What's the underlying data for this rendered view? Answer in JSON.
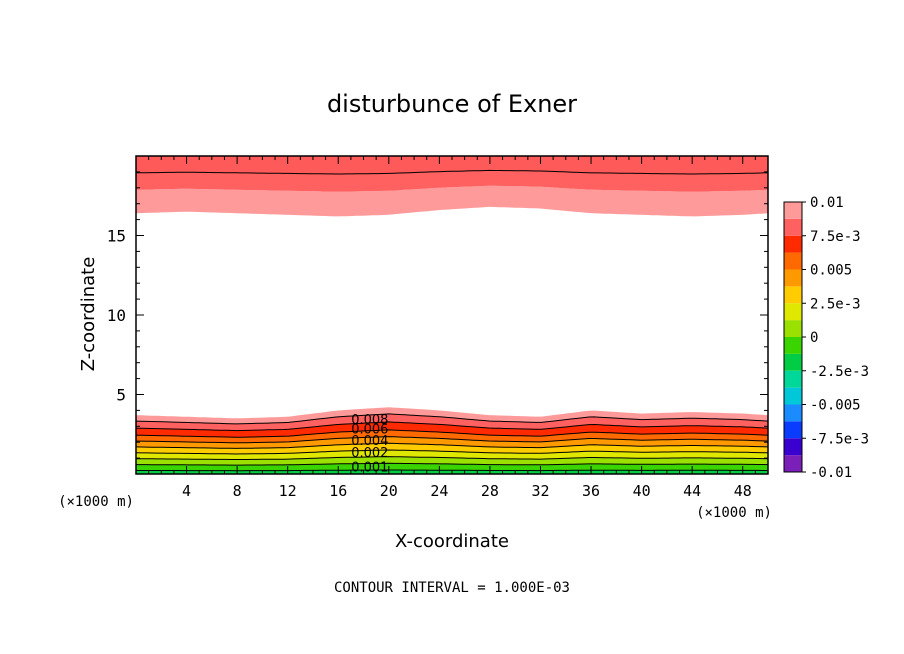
{
  "chart_data": {
    "type": "heatmap",
    "title": "disturbunce of Exner",
    "xlabel": "X-coordinate",
    "ylabel": "Z-coordinate",
    "x_unit": "(×1000 m)",
    "y_unit": "(×1000 m)",
    "xlim": [
      0,
      50
    ],
    "ylim": [
      0,
      20
    ],
    "x_ticks": [
      4,
      8,
      12,
      16,
      20,
      24,
      28,
      32,
      36,
      40,
      44,
      48
    ],
    "y_ticks": [
      5,
      10,
      15
    ],
    "contour_interval_label": "CONTOUR INTERVAL = 1.000E-03",
    "colorbar": {
      "range": [
        -0.01,
        0.01
      ],
      "tick_labels": [
        "0.01",
        "7.5e-3",
        "0.005",
        "2.5e-3",
        "0",
        "-2.5e-3",
        "-0.005",
        "-7.5e-3",
        "-0.01"
      ],
      "colors": [
        "#7a1fb8",
        "#3a00d0",
        "#0a3cff",
        "#1a8cff",
        "#00c8d8",
        "#00d89a",
        "#00cc44",
        "#3ad400",
        "#9ae000",
        "#e0e800",
        "#ffcc00",
        "#ff9900",
        "#ff6a00",
        "#ff2a00",
        "#ff6060",
        "#ff9a9a"
      ]
    },
    "lower_contour_labels": [
      "0.008",
      "0.006",
      "0.004",
      "0.002",
      "0.001"
    ],
    "lower_layer_top_profile": {
      "x": [
        0,
        4,
        8,
        12,
        16,
        20,
        24,
        28,
        32,
        36,
        40,
        44,
        48,
        50
      ],
      "z": [
        3.7,
        3.6,
        3.5,
        3.6,
        4.0,
        4.2,
        4.0,
        3.7,
        3.6,
        4.0,
        3.8,
        3.9,
        3.8,
        3.7
      ]
    },
    "upper_layer_bottom_profile": {
      "x": [
        0,
        4,
        8,
        12,
        16,
        20,
        24,
        28,
        32,
        36,
        40,
        44,
        48,
        50
      ],
      "z": [
        16.4,
        16.5,
        16.4,
        16.3,
        16.2,
        16.3,
        16.6,
        16.8,
        16.7,
        16.4,
        16.3,
        16.2,
        16.3,
        16.4
      ]
    },
    "grid": false
  }
}
